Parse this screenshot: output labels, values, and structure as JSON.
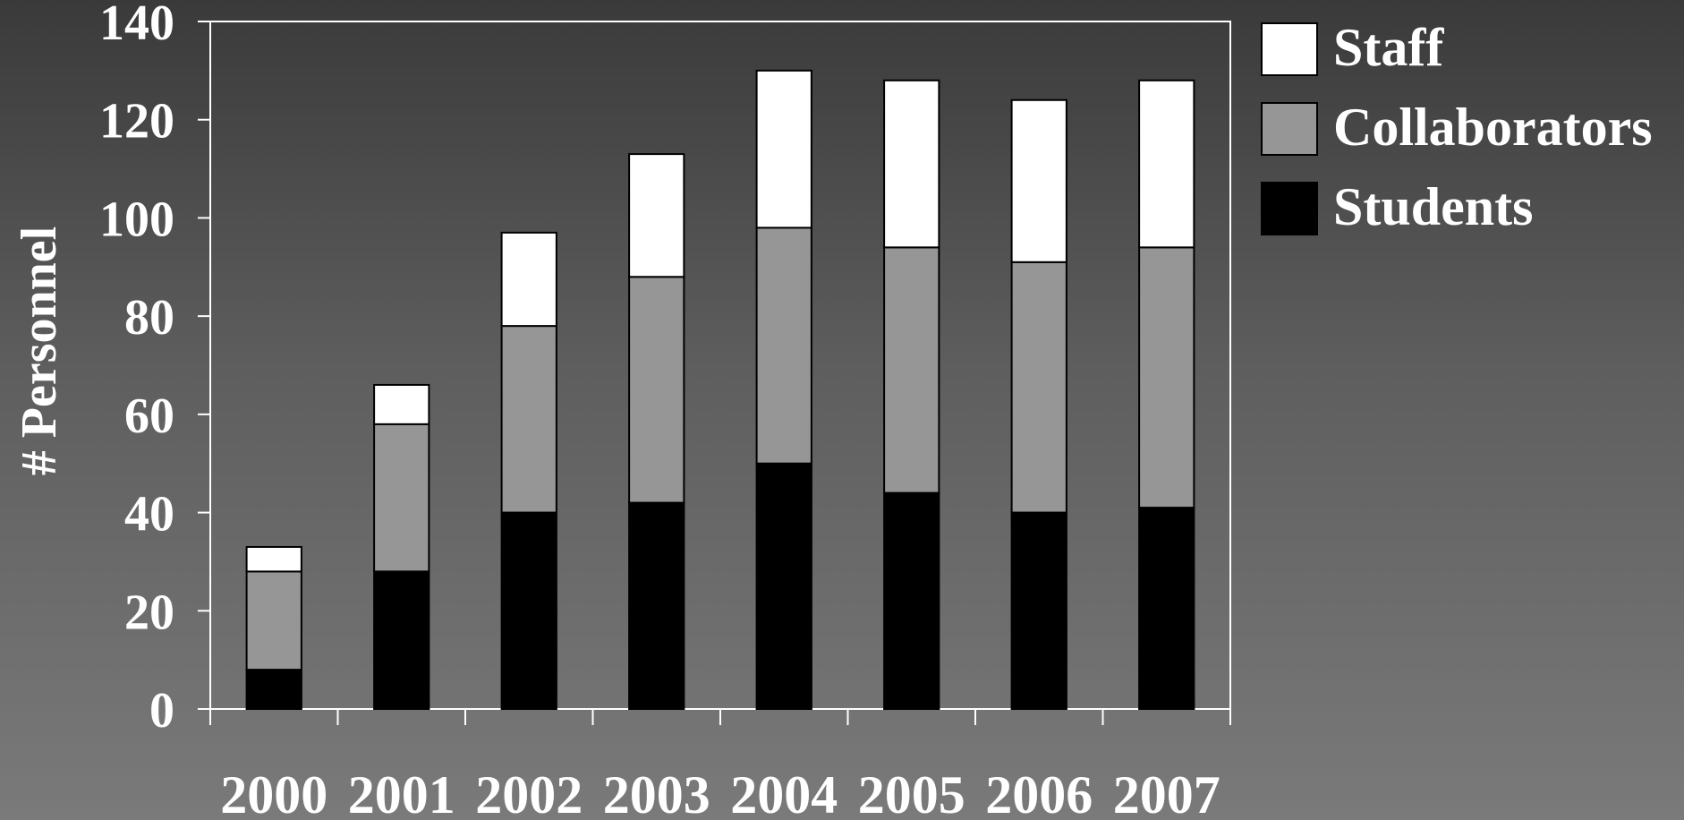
{
  "chart_data": {
    "type": "bar",
    "stacked": true,
    "categories": [
      "2000",
      "2001",
      "2002",
      "2003",
      "2004",
      "2005",
      "2006",
      "2007"
    ],
    "series": [
      {
        "name": "Students",
        "color": "#000000",
        "values": [
          8,
          28,
          40,
          42,
          50,
          44,
          40,
          41
        ]
      },
      {
        "name": "Collaborators",
        "color": "#969696",
        "values": [
          20,
          30,
          38,
          46,
          48,
          50,
          51,
          53
        ]
      },
      {
        "name": "Staff",
        "color": "#ffffff",
        "values": [
          5,
          8,
          19,
          25,
          32,
          34,
          33,
          34
        ]
      }
    ],
    "legend_order": [
      "Staff",
      "Collaborators",
      "Students"
    ],
    "legend_position": "right",
    "ylabel": "# Personnel",
    "xlabel": "",
    "ylim": [
      0,
      140
    ],
    "yticks": [
      "0",
      "20",
      "40",
      "60",
      "80",
      "100",
      "120",
      "140"
    ],
    "grid": false
  }
}
